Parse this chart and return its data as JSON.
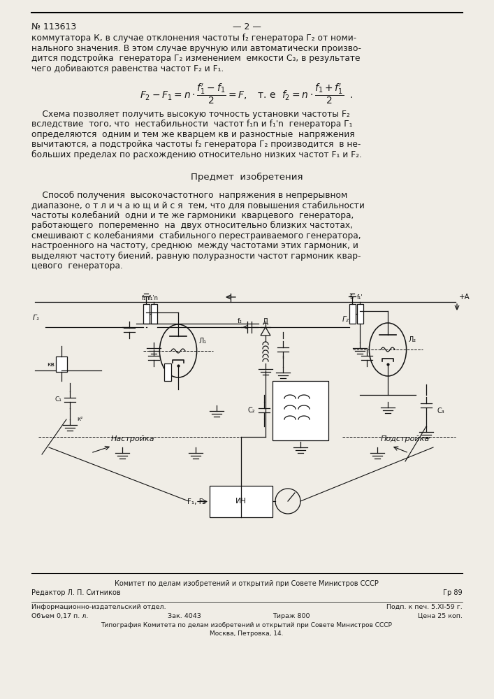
{
  "bg_color": "#f0ede6",
  "text_color": "#1a1a1a",
  "circuit_color": "#111111",
  "page_width": 7.07,
  "page_height": 10.0,
  "header_number": "№ 113613",
  "header_dash": "— 2 —",
  "footer1": "Комитет по делам изобретений и открытий при Совете Министров СССР",
  "footer2": "Редактор Л. П. Ситников",
  "footer_pg": "Гр 89",
  "footer3_left": "Информационно-издательский отдел.",
  "footer3_right": "Подп. к печ. 5.XI-59 г.",
  "footer4_left": "Объем 0,17 п. л.",
  "footer4_mid": "Зак. 4043",
  "footer4_mid2": "Тираж 800",
  "footer4_right": "Цена 25 коп.",
  "footer5": "Типография Комитета по делам изобретений и открытий при Совете Министров СССР",
  "footer6": "Москва, Петровка, 14."
}
